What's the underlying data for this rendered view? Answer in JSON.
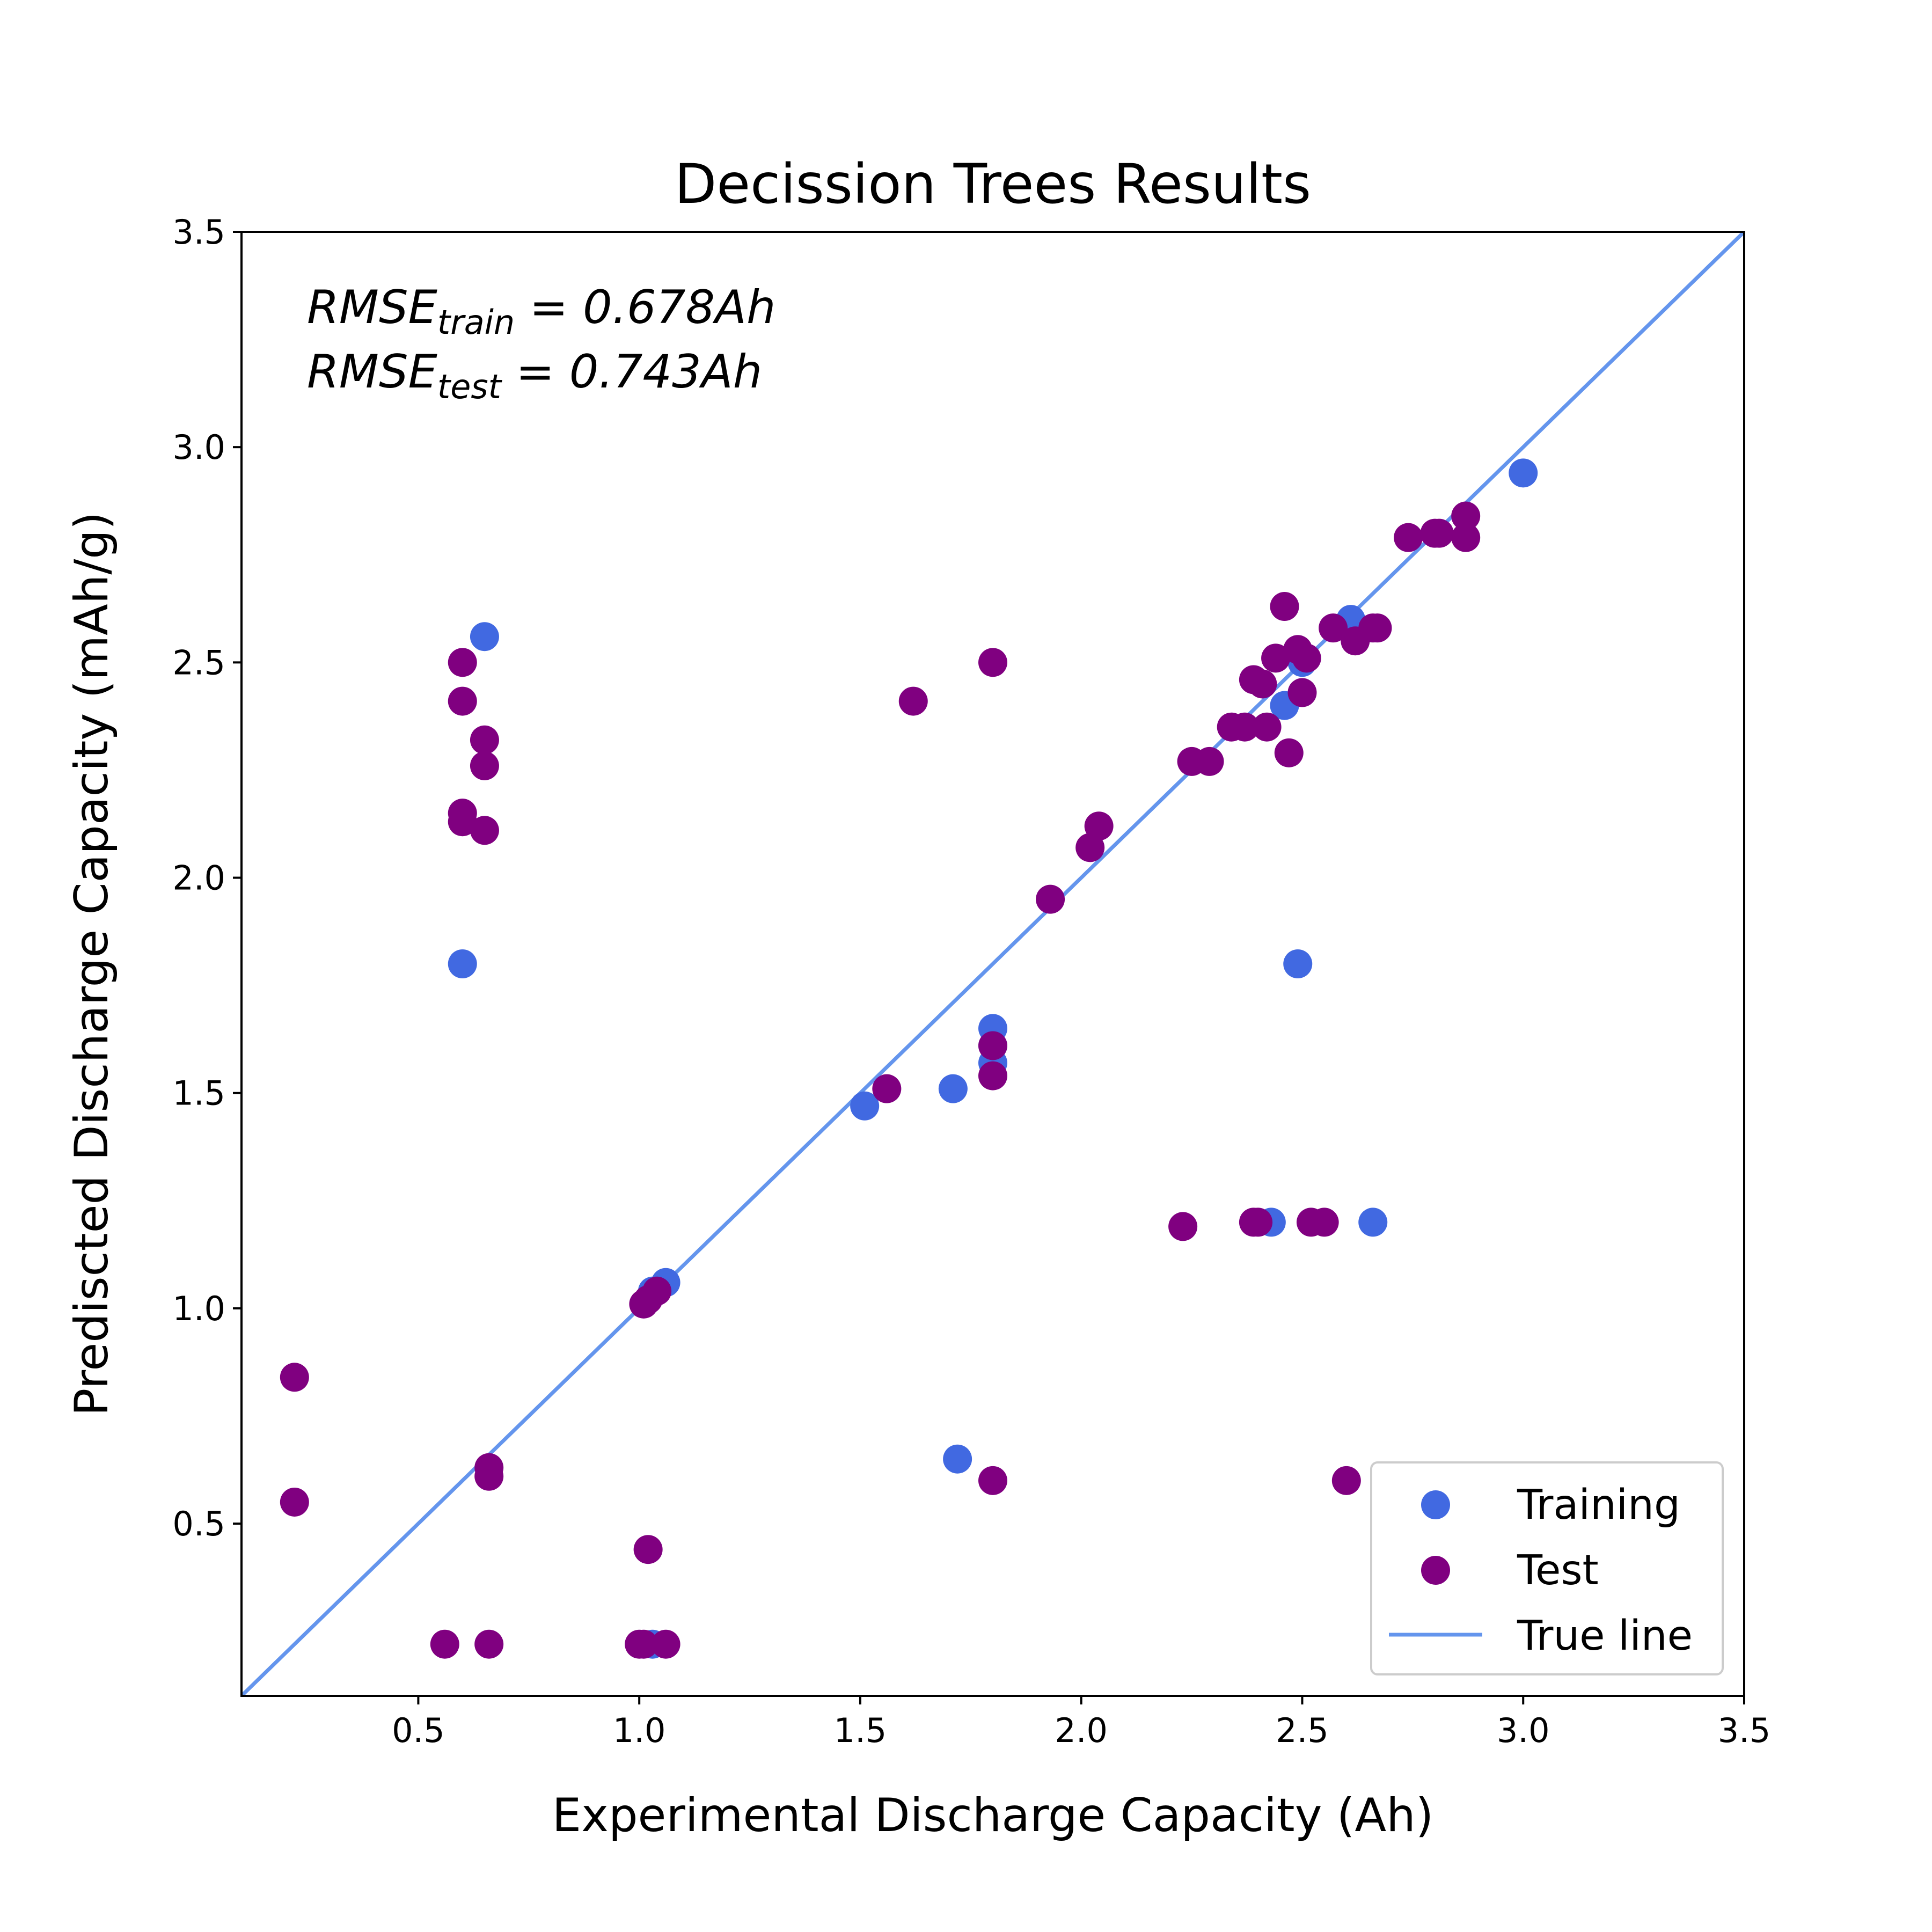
{
  "chart_data": {
    "type": "scatter",
    "title": "Decission Trees Results",
    "xlabel": "Experimental Discharge Capacity (Ah)",
    "ylabel": "Prediscted Discharge Capacity (mAh/g)",
    "xlim": [
      0.1,
      3.5
    ],
    "ylim": [
      0.1,
      3.5
    ],
    "xticks": [
      "0.5",
      "1.0",
      "1.5",
      "2.0",
      "2.5",
      "3.0",
      "3.5"
    ],
    "yticks": [
      "0.5",
      "1.0",
      "1.5",
      "2.0",
      "2.5",
      "3.0",
      "3.5"
    ],
    "grid": false,
    "legend_position": "lower-right",
    "annotations": {
      "train": {
        "main": "RMSE",
        "sub": "train",
        "rest": " = 0.678Ah"
      },
      "test": {
        "main": "RMSE",
        "sub": "test",
        "rest": " = 0.743Ah"
      }
    },
    "legend": [
      "Training",
      "Test",
      "True line"
    ],
    "colors": {
      "training": "#4169E1",
      "test": "#800080",
      "true_line": "#6495ED"
    },
    "true_line": {
      "x": [
        0.1,
        3.5
      ],
      "y": [
        0.1,
        3.5
      ]
    },
    "series": [
      {
        "name": "Training",
        "points": [
          [
            0.65,
            2.56
          ],
          [
            0.6,
            1.8
          ],
          [
            1.51,
            1.47
          ],
          [
            1.71,
            1.51
          ],
          [
            1.8,
            1.65
          ],
          [
            1.8,
            1.61
          ],
          [
            1.8,
            1.57
          ],
          [
            1.72,
            0.65
          ],
          [
            1.06,
            1.06
          ],
          [
            1.03,
            1.04
          ],
          [
            1.03,
            0.22
          ],
          [
            2.43,
            1.2
          ],
          [
            2.66,
            1.2
          ],
          [
            2.49,
            1.8
          ],
          [
            2.46,
            2.4
          ],
          [
            2.61,
            2.6
          ],
          [
            3.0,
            2.94
          ],
          [
            2.5,
            2.5
          ]
        ]
      },
      {
        "name": "Test",
        "points": [
          [
            0.6,
            2.5
          ],
          [
            0.6,
            2.41
          ],
          [
            0.65,
            2.32
          ],
          [
            0.65,
            2.26
          ],
          [
            0.6,
            2.15
          ],
          [
            0.6,
            2.13
          ],
          [
            0.65,
            2.11
          ],
          [
            0.22,
            0.84
          ],
          [
            0.22,
            0.55
          ],
          [
            0.66,
            0.63
          ],
          [
            0.66,
            0.61
          ],
          [
            0.56,
            0.22
          ],
          [
            0.66,
            0.22
          ],
          [
            1.0,
            0.22
          ],
          [
            1.01,
            0.22
          ],
          [
            1.06,
            0.22
          ],
          [
            1.02,
            0.44
          ],
          [
            1.01,
            1.01
          ],
          [
            1.02,
            1.02
          ],
          [
            1.04,
            1.04
          ],
          [
            1.56,
            1.51
          ],
          [
            1.62,
            2.41
          ],
          [
            1.8,
            2.5
          ],
          [
            1.8,
            1.61
          ],
          [
            1.8,
            1.54
          ],
          [
            1.8,
            0.6
          ],
          [
            1.93,
            1.95
          ],
          [
            2.02,
            2.07
          ],
          [
            2.04,
            2.12
          ],
          [
            2.23,
            1.19
          ],
          [
            2.25,
            2.27
          ],
          [
            2.29,
            2.27
          ],
          [
            2.34,
            2.35
          ],
          [
            2.37,
            2.35
          ],
          [
            2.39,
            2.46
          ],
          [
            2.42,
            2.35
          ],
          [
            2.41,
            2.45
          ],
          [
            2.39,
            1.2
          ],
          [
            2.4,
            1.2
          ],
          [
            2.44,
            2.51
          ],
          [
            2.46,
            2.63
          ],
          [
            2.47,
            2.29
          ],
          [
            2.49,
            2.53
          ],
          [
            2.5,
            2.43
          ],
          [
            2.51,
            2.51
          ],
          [
            2.52,
            1.2
          ],
          [
            2.55,
            1.2
          ],
          [
            2.57,
            2.58
          ],
          [
            2.62,
            2.55
          ],
          [
            2.66,
            2.58
          ],
          [
            2.67,
            2.58
          ],
          [
            2.6,
            0.6
          ],
          [
            2.74,
            2.79
          ],
          [
            2.8,
            2.8
          ],
          [
            2.81,
            2.8
          ],
          [
            2.87,
            2.84
          ],
          [
            2.87,
            2.79
          ]
        ]
      }
    ]
  }
}
